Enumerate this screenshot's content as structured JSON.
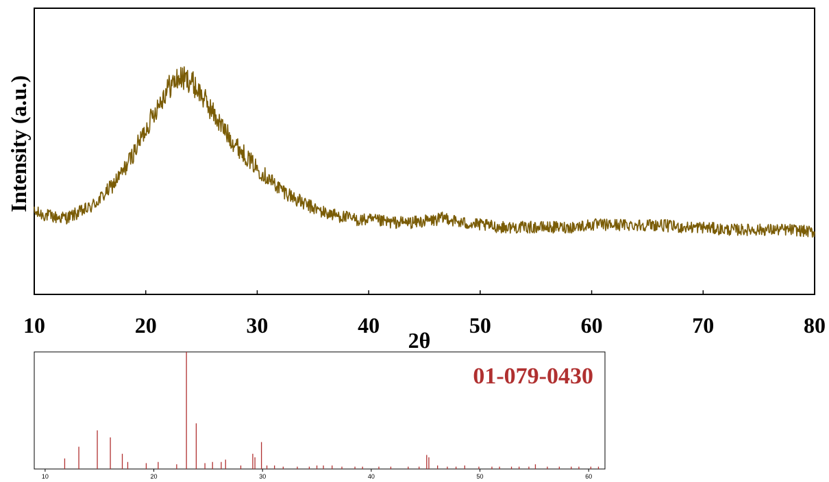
{
  "chart_data": [
    {
      "type": "line",
      "title": "",
      "xlabel": "2θ",
      "ylabel": "Intensity (a.u.)",
      "xlim": [
        10,
        80
      ],
      "ylim": [
        0,
        100
      ],
      "x_ticks": [
        10,
        20,
        30,
        40,
        50,
        60,
        70,
        80
      ],
      "y_ticks": [],
      "grid": false,
      "series": [
        {
          "color": "#7a5c06",
          "x": [
            10,
            11,
            12,
            13,
            14,
            15,
            16,
            17,
            18,
            19,
            20,
            21,
            22,
            23,
            24,
            25,
            26,
            27,
            28,
            29,
            30,
            31,
            32,
            33,
            34,
            35,
            36,
            37,
            38,
            39,
            40,
            42,
            44,
            46,
            47,
            48,
            50,
            52,
            54,
            56,
            58,
            60,
            62,
            64,
            66,
            68,
            70,
            72,
            74,
            76,
            78,
            80
          ],
          "y": [
            25,
            24,
            23,
            23,
            25,
            27,
            31,
            36,
            42,
            50,
            59,
            68,
            76,
            80,
            79,
            73,
            66,
            59,
            53,
            48,
            43,
            39,
            35,
            32,
            29,
            27,
            25,
            24,
            23,
            22,
            22,
            21,
            21,
            22,
            23,
            21,
            20,
            19,
            19,
            19,
            19,
            20,
            20,
            20,
            20,
            19,
            19,
            18,
            18,
            18,
            18,
            17
          ]
        }
      ]
    },
    {
      "type": "bar",
      "title": "01-079-0430",
      "xlabel": "",
      "ylabel": "",
      "xlim": [
        9,
        61.5
      ],
      "ylim": [
        0,
        100
      ],
      "x_ticks": [
        10,
        20,
        30,
        40,
        50,
        60
      ],
      "grid": false,
      "series": [
        {
          "color": "#b03030",
          "x": [
            11.8,
            13.1,
            14.8,
            16.0,
            17.1,
            17.6,
            19.3,
            20.4,
            22.1,
            23.0,
            23.9,
            24.7,
            25.4,
            26.2,
            26.6,
            28.0,
            29.1,
            29.3,
            29.9,
            30.4,
            31.1,
            31.9,
            33.2,
            34.3,
            35.0,
            35.6,
            36.4,
            37.3,
            38.5,
            39.2,
            40.7,
            41.8,
            43.4,
            44.4,
            45.1,
            45.3,
            46.1,
            47.0,
            47.8,
            48.6,
            49.9,
            51.1,
            51.8,
            52.9,
            53.6,
            54.5,
            55.1,
            56.2,
            57.3,
            58.4,
            59.1,
            60.2,
            60.9
          ],
          "values": [
            9,
            19,
            33,
            27,
            13,
            6,
            5,
            6,
            4,
            100,
            39,
            5,
            6,
            6,
            8,
            3,
            13,
            10,
            23,
            3,
            3,
            2,
            2,
            2,
            3,
            3,
            3,
            2,
            2,
            2,
            2,
            2,
            2,
            2,
            12,
            10,
            3,
            2,
            2,
            3,
            2,
            2,
            2,
            2,
            2,
            2,
            4,
            2,
            2,
            2,
            2,
            2,
            2
          ]
        }
      ]
    }
  ]
}
